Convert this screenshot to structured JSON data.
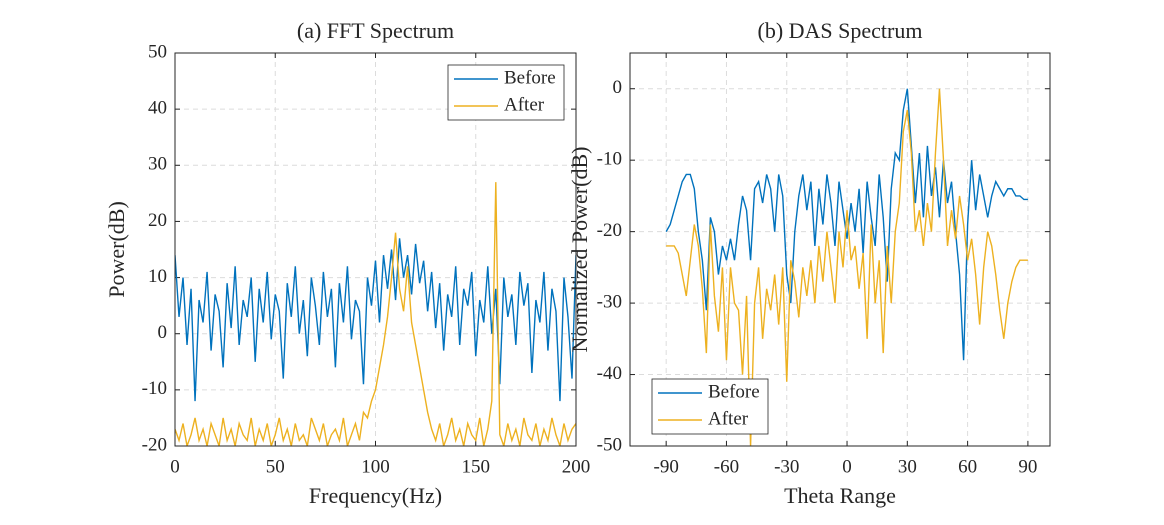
{
  "chart_data": [
    {
      "type": "line",
      "title": "(a) FFT Spectrum",
      "xlabel": "Frequency(Hz)",
      "ylabel": "Power(dB)",
      "x": [
        0,
        2,
        4,
        6,
        8,
        10,
        12,
        14,
        16,
        18,
        20,
        22,
        24,
        26,
        28,
        30,
        32,
        34,
        36,
        38,
        40,
        42,
        44,
        46,
        48,
        50,
        52,
        54,
        56,
        58,
        60,
        62,
        64,
        66,
        68,
        70,
        72,
        74,
        76,
        78,
        80,
        82,
        84,
        86,
        88,
        90,
        92,
        94,
        96,
        98,
        100,
        102,
        104,
        106,
        108,
        110,
        112,
        114,
        116,
        118,
        120,
        122,
        124,
        126,
        128,
        130,
        132,
        134,
        136,
        138,
        140,
        142,
        144,
        146,
        148,
        150,
        152,
        154,
        156,
        158,
        160,
        162,
        164,
        166,
        168,
        170,
        172,
        174,
        176,
        178,
        180,
        182,
        184,
        186,
        188,
        190,
        192,
        194,
        196,
        198,
        200
      ],
      "series": [
        {
          "name": "Before",
          "color": "#0072BD",
          "values": [
            14,
            3,
            10,
            -2,
            8,
            -12,
            6,
            2,
            11,
            -3,
            7,
            4,
            -6,
            9,
            1,
            12,
            -2,
            6,
            3,
            10,
            -5,
            8,
            2,
            11,
            -1,
            7,
            4,
            -8,
            9,
            3,
            12,
            0,
            6,
            -4,
            10,
            5,
            -2,
            11,
            3,
            8,
            -6,
            9,
            2,
            12,
            -1,
            6,
            4,
            -9,
            10,
            5,
            13,
            2,
            14,
            8,
            15,
            6,
            17,
            10,
            14,
            7,
            16,
            9,
            13,
            4,
            11,
            1,
            9,
            -3,
            7,
            3,
            12,
            -2,
            8,
            5,
            11,
            -4,
            6,
            2,
            12,
            0,
            8,
            -9,
            10,
            3,
            7,
            -2,
            11,
            5,
            9,
            -7,
            6,
            2,
            11,
            -3,
            8,
            4,
            -12,
            10,
            3,
            -8,
            14
          ]
        },
        {
          "name": "After",
          "color": "#EDB120",
          "values": [
            -17,
            -19,
            -16,
            -20,
            -18,
            -15,
            -19,
            -17,
            -20,
            -16,
            -18,
            -20,
            -15,
            -19,
            -17,
            -20,
            -16,
            -18,
            -19,
            -15,
            -20,
            -17,
            -19,
            -16,
            -20,
            -18,
            -15,
            -19,
            -17,
            -20,
            -16,
            -19,
            -18,
            -20,
            -15,
            -17,
            -19,
            -16,
            -20,
            -18,
            -17,
            -19,
            -15,
            -20,
            -18,
            -16,
            -19,
            -14,
            -15,
            -12,
            -10,
            -6,
            -2,
            3,
            10,
            18,
            8,
            4,
            12,
            2,
            -2,
            -6,
            -10,
            -14,
            -17,
            -19,
            -16,
            -20,
            -18,
            -15,
            -19,
            -17,
            -20,
            -16,
            -18,
            -19,
            -15,
            -20,
            -17,
            -12,
            27,
            -18,
            -20,
            -16,
            -19,
            -17,
            -20,
            -15,
            -18,
            -19,
            -16,
            -20,
            -17,
            -19,
            -15,
            -18,
            -20,
            -16,
            -19,
            -17,
            -16
          ]
        }
      ],
      "xlim": [
        0,
        200
      ],
      "ylim": [
        -20,
        50
      ],
      "xticks": [
        0,
        50,
        100,
        150,
        200
      ],
      "yticks": [
        -20,
        -10,
        0,
        10,
        20,
        30,
        40,
        50
      ],
      "grid": true,
      "legend": "northeast"
    },
    {
      "type": "line",
      "title": "(b) DAS Spectrum",
      "xlabel": "Theta Range",
      "ylabel": "Normalized Power(dB)",
      "x": [
        -90,
        -88,
        -86,
        -84,
        -82,
        -80,
        -78,
        -76,
        -74,
        -72,
        -70,
        -68,
        -66,
        -64,
        -62,
        -60,
        -58,
        -56,
        -54,
        -52,
        -50,
        -48,
        -46,
        -44,
        -42,
        -40,
        -38,
        -36,
        -34,
        -32,
        -30,
        -28,
        -26,
        -24,
        -22,
        -20,
        -18,
        -16,
        -14,
        -12,
        -10,
        -8,
        -6,
        -4,
        -2,
        0,
        2,
        4,
        6,
        8,
        10,
        12,
        14,
        16,
        18,
        20,
        22,
        24,
        26,
        28,
        30,
        32,
        34,
        36,
        38,
        40,
        42,
        44,
        46,
        48,
        50,
        52,
        54,
        56,
        58,
        60,
        62,
        64,
        66,
        68,
        70,
        72,
        74,
        76,
        78,
        80,
        82,
        84,
        86,
        88,
        90
      ],
      "series": [
        {
          "name": "Before",
          "color": "#0072BD",
          "values": [
            -20,
            -19,
            -17,
            -15,
            -13,
            -12,
            -12,
            -14,
            -20,
            -24,
            -31,
            -18,
            -20,
            -26,
            -22,
            -24,
            -21,
            -24,
            -19,
            -15,
            -17,
            -24,
            -14,
            -13,
            -16,
            -12,
            -14,
            -20,
            -12,
            -15,
            -26,
            -30,
            -20,
            -15,
            -12,
            -17,
            -13,
            -22,
            -14,
            -19,
            -12,
            -16,
            -22,
            -13,
            -17,
            -21,
            -16,
            -20,
            -14,
            -23,
            -13,
            -18,
            -22,
            -12,
            -18,
            -27,
            -14,
            -9,
            -10,
            -3,
            0,
            -8,
            -16,
            -9,
            -18,
            -8,
            -15,
            -11,
            -18,
            -10,
            -16,
            -13,
            -20,
            -26,
            -38,
            -19,
            -10,
            -17,
            -12,
            -15,
            -18,
            -15,
            -13,
            -14,
            -15,
            -14,
            -14,
            -15,
            -15,
            -15.5,
            -15.5
          ]
        },
        {
          "name": "After",
          "color": "#EDB120",
          "values": [
            -22,
            -22,
            -22,
            -23,
            -26,
            -29,
            -24,
            -19,
            -22,
            -28,
            -37,
            -19,
            -29,
            -34,
            -25,
            -38,
            -25,
            -30,
            -31,
            -40,
            -29,
            -50,
            -30,
            -25,
            -35,
            -28,
            -31,
            -26,
            -33,
            -25,
            -41,
            -24,
            -27,
            -32,
            -25,
            -29,
            -24,
            -30,
            -22,
            -27,
            -20,
            -25,
            -30,
            -20,
            -25,
            -17,
            -24,
            -22,
            -28,
            -23,
            -35,
            -19,
            -30,
            -24,
            -37,
            -22,
            -30,
            -20,
            -16,
            -6,
            -3,
            -9,
            -20,
            -17,
            -22,
            -16,
            -20,
            -9,
            0,
            -10,
            -22,
            -17,
            -21,
            -15,
            -19,
            -24,
            -21,
            -26,
            -33,
            -25,
            -20,
            -22,
            -26,
            -31,
            -35,
            -30,
            -27,
            -25,
            -24,
            -24,
            -24
          ]
        }
      ],
      "xlim": [
        -108,
        101
      ],
      "ylim": [
        -50,
        5
      ],
      "xticks": [
        -90,
        -60,
        -30,
        0,
        30,
        60,
        90
      ],
      "yticks": [
        -50,
        -40,
        -30,
        -20,
        -10,
        0
      ],
      "grid": true,
      "legend": "southwest"
    }
  ]
}
